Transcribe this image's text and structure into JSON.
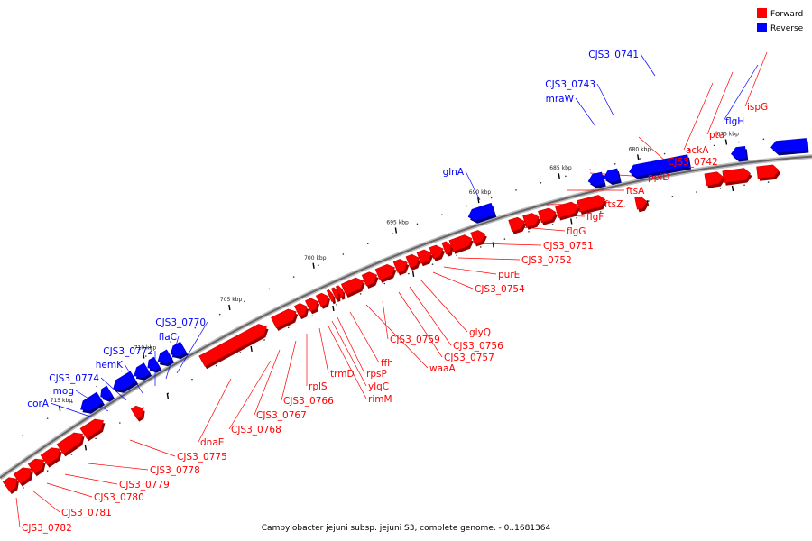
{
  "legend": {
    "items": [
      {
        "label": "Forward",
        "color": "#ff0000"
      },
      {
        "label": "Reverse",
        "color": "#0000ff"
      }
    ]
  },
  "caption": "Campylobacter jejuni subsp. jejuni S3, complete genome. - 0..1681364",
  "colors": {
    "forward": "#ff0000",
    "reverse": "#0000ff",
    "backbone": "#808080"
  },
  "scale_labels": [
    "675 kbp",
    "680 kbp",
    "685 kbp",
    "690 kbp",
    "695 kbp",
    "700 kbp",
    "705 kbp",
    "710 kbp",
    "715 kbp"
  ],
  "reverse_genes": [
    "CJS3_0741",
    "CJS3_0743",
    "mraW",
    "glnA",
    "CJS3_0770",
    "flaC",
    "CJS3_0772",
    "hemK",
    "CJS3_0774",
    "mog",
    "corA",
    "flgH"
  ],
  "forward_genes": [
    "ispG",
    "pta",
    "ackA",
    "CJS3_0742",
    "ppiD",
    "ftsA",
    "ftsZ",
    "flgF",
    "flgG",
    "CJS3_0751",
    "CJS3_0752",
    "purE",
    "CJS3_0754",
    "glyQ",
    "CJS3_0756",
    "CJS3_0757",
    "CJS3_0759",
    "waaA",
    "ffh",
    "rpsP",
    "ylqC",
    "rimM",
    "trmD",
    "rplS",
    "CJS3_0766",
    "CJS3_0767",
    "CJS3_0768",
    "dnaE",
    "CJS3_0775",
    "CJS3_0778",
    "CJS3_0779",
    "CJS3_0780",
    "CJS3_0781",
    "CJS3_0782"
  ]
}
